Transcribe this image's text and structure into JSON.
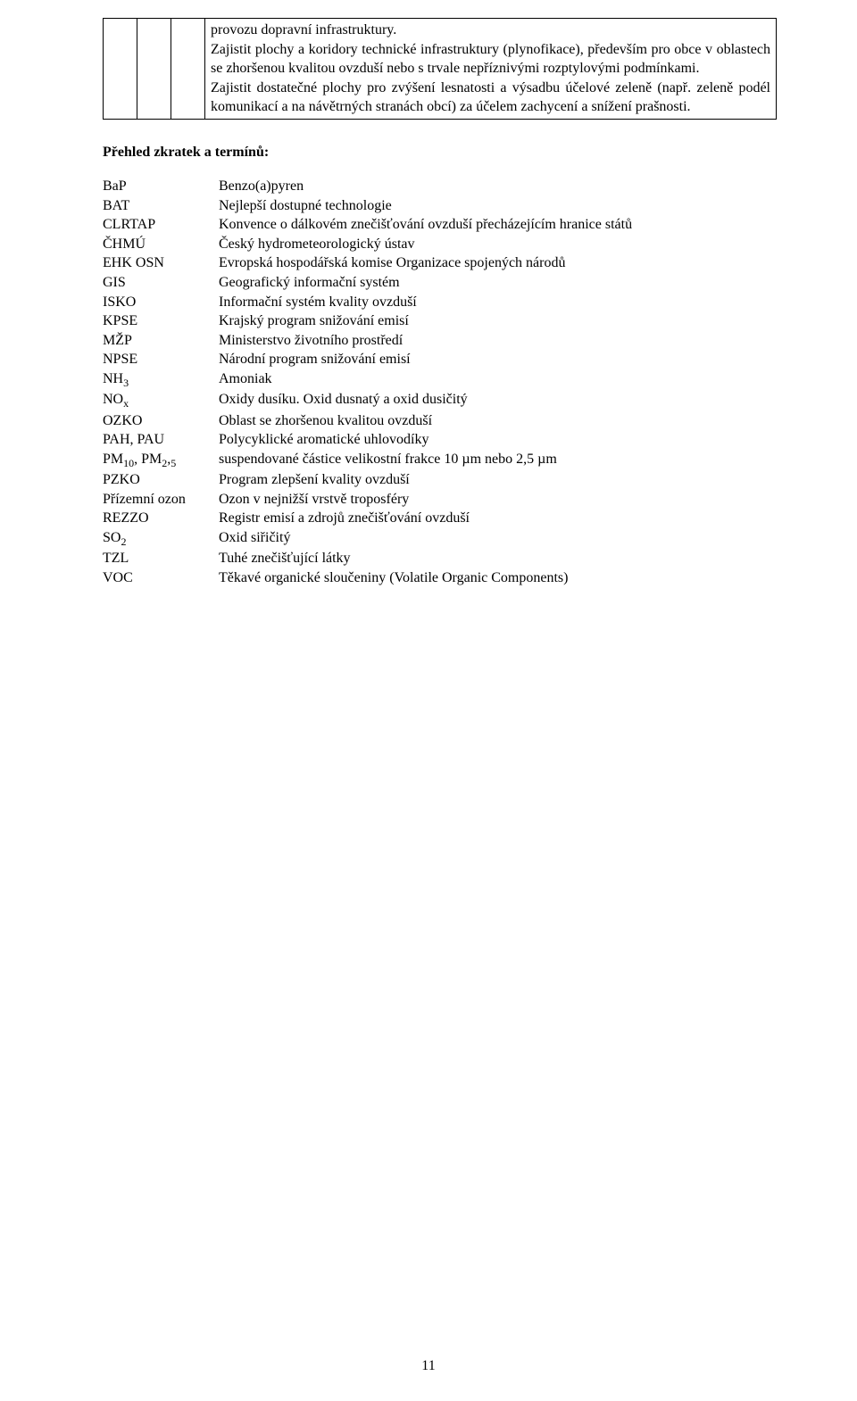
{
  "table_cell_text": "provozu dopravní infrastruktury.\nZajistit plochy a koridory technické infrastruktury (plynofikace), především pro obce v oblastech se zhoršenou kvalitou ovzduší nebo s trvale nepříznivými rozptylovými podmínkami.\nZajistit dostatečné plochy pro zvýšení lesnatosti a výsadbu účelové zeleně (např. zeleně podél komunikací a na návětrných stranách obcí) za účelem zachycení a snížení prašnosti.",
  "section_heading": "Přehled zkratek a termínů:",
  "terms": [
    {
      "abbr": "BaP",
      "def": "Benzo(a)pyren"
    },
    {
      "abbr": "BAT",
      "def": "Nejlepší dostupné technologie"
    },
    {
      "abbr": "CLRTAP",
      "def": "Konvence o dálkovém znečišťování ovzduší přecházejícím hranice států"
    },
    {
      "abbr": "ČHMÚ",
      "def": "Český hydrometeorologický ústav"
    },
    {
      "abbr": "EHK OSN",
      "def": "Evropská hospodářská komise Organizace spojených národů"
    },
    {
      "abbr": "GIS",
      "def": "Geografický informační systém"
    },
    {
      "abbr": "ISKO",
      "def": "Informační systém kvality ovzduší"
    },
    {
      "abbr": "KPSE",
      "def": "Krajský program snižování emisí"
    },
    {
      "abbr": "MŽP",
      "def": "Ministerstvo životního prostředí"
    },
    {
      "abbr": "NPSE",
      "def": "Národní program snižování emisí"
    },
    {
      "abbr": "NH₃",
      "def": "Amoniak"
    },
    {
      "abbr": "NOₓ",
      "def": "Oxidy dusíku. Oxid dusnatý a oxid dusičitý"
    },
    {
      "abbr": "OZKO",
      "def": "Oblast se zhoršenou kvalitou ovzduší"
    },
    {
      "abbr": "PAH, PAU",
      "def": "Polycyklické aromatické uhlovodíky"
    },
    {
      "abbr": "PM₁₀, PM₂,₅",
      "def": "suspendované částice velikostní frakce 10 µm  nebo 2,5 µm"
    },
    {
      "abbr": "PZKO",
      "def": "Program zlepšení kvality ovzduší"
    },
    {
      "abbr": "Přízemní ozon",
      "def": "Ozon v nejnižší vrstvě troposféry"
    },
    {
      "abbr": "REZZO",
      "def": "Registr emisí a zdrojů znečišťování ovzduší"
    },
    {
      "abbr": "SO₂",
      "def": "Oxid siřičitý"
    },
    {
      "abbr": "TZL",
      "def": "Tuhé znečišťující látky"
    },
    {
      "abbr": "VOC",
      "def": "Těkavé organické sloučeniny (Volatile Organic Components)"
    }
  ],
  "page_number": "11"
}
